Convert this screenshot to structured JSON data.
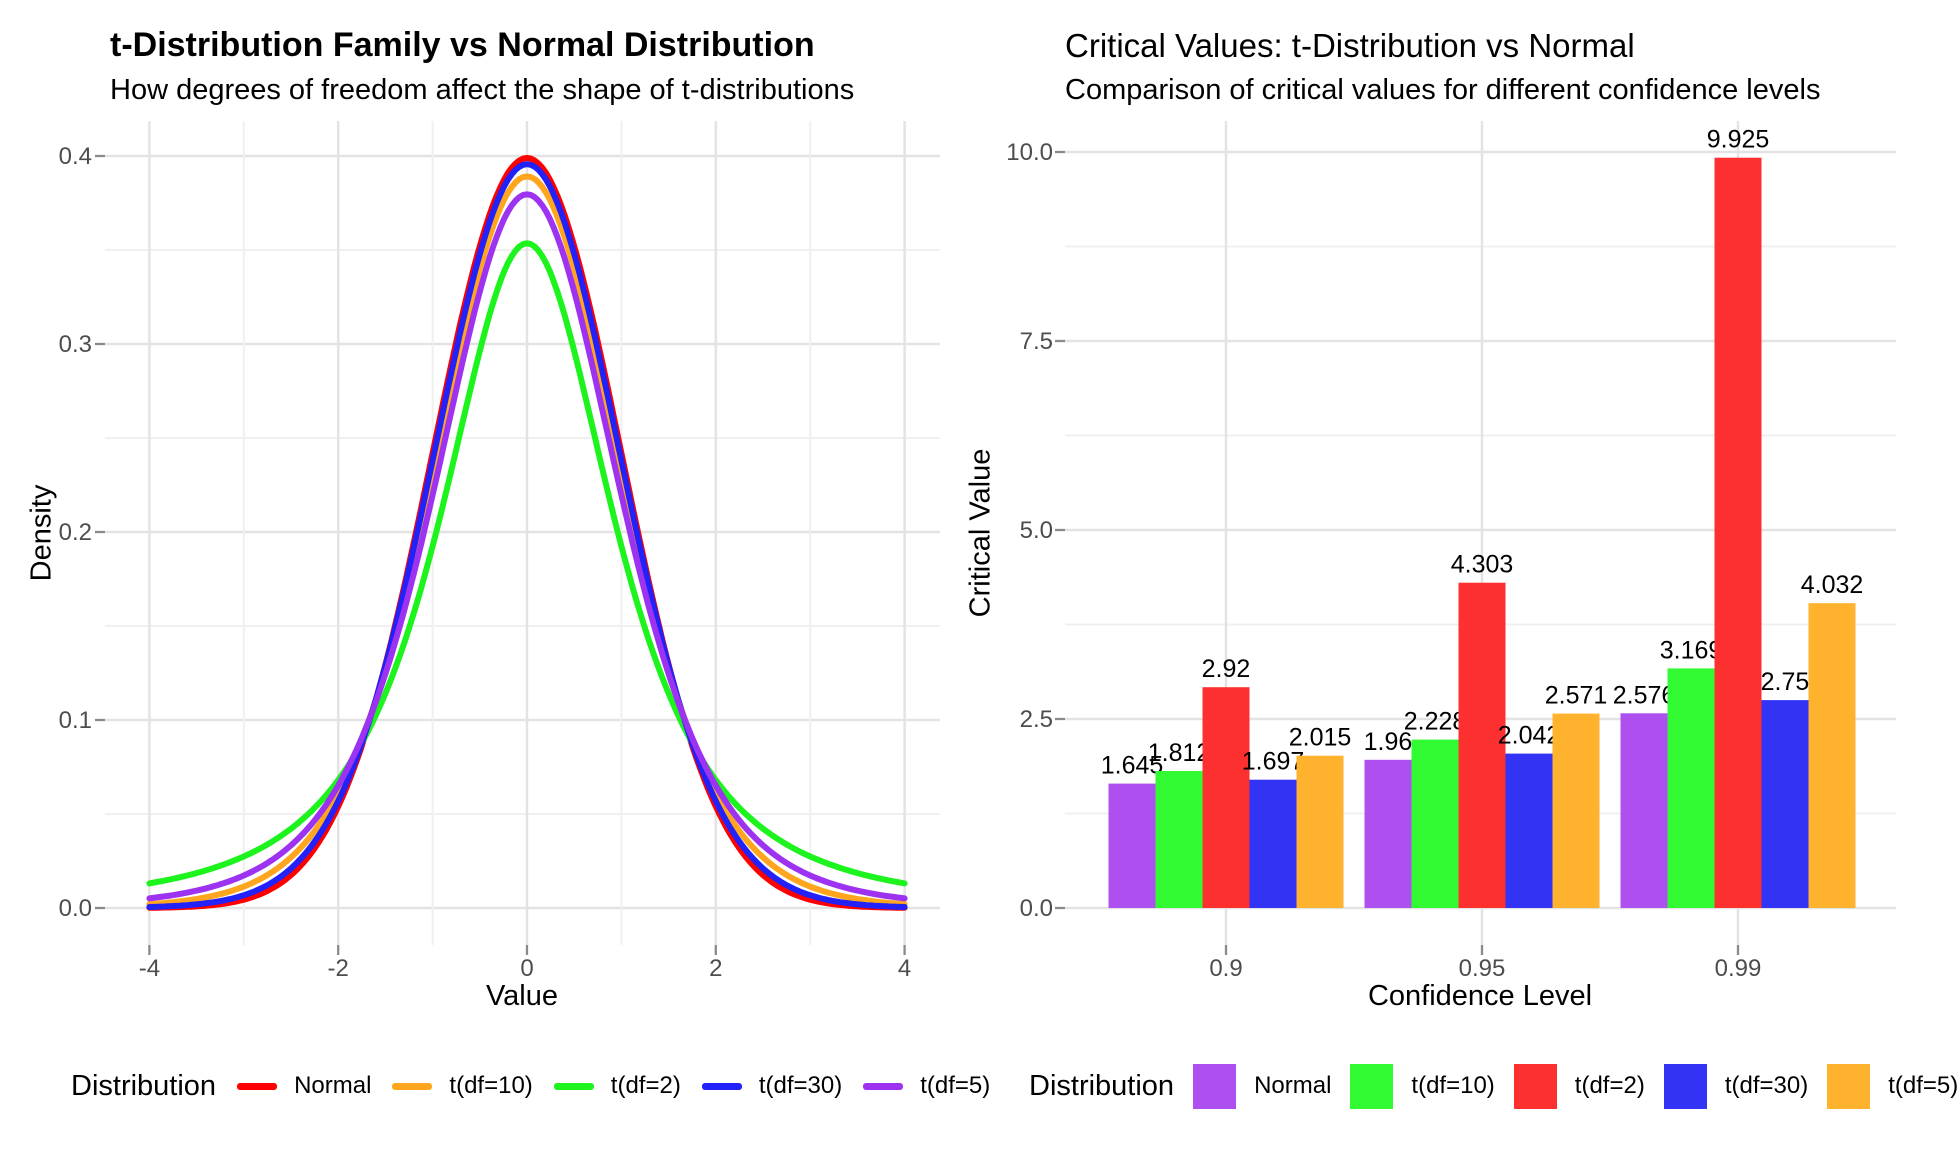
{
  "figure": {
    "background": "#FFFFFF",
    "grid_major_color": "#E3E3E3",
    "grid_minor_color": "#F0F0F0",
    "tick_mark_color": "#8A8A8A",
    "tick_label_color": "#4D4D4D",
    "text_color": "#000000"
  },
  "chart_data": [
    {
      "type": "line",
      "panel": "left",
      "title": "t-Distribution Family vs Normal Distribution",
      "subtitle": "How degrees of freedom affect the shape of t-distributions",
      "xlabel": "Value",
      "ylabel": "Density",
      "legend_title": "Distribution",
      "legend_position": "bottom",
      "grid": true,
      "xlim": [
        -4,
        4
      ],
      "ylim": [
        0,
        0.42
      ],
      "x_ticks": [
        -4,
        -2,
        0,
        2,
        4
      ],
      "x_tick_labels": [
        "-4",
        "-2",
        "0",
        "2",
        "4"
      ],
      "x_minor": [
        -3,
        -1,
        1,
        3
      ],
      "y_ticks": [
        0,
        0.1,
        0.2,
        0.3,
        0.4
      ],
      "y_tick_labels": [
        "0.0",
        "0.1",
        "0.2",
        "0.3",
        "0.4"
      ],
      "y_minor": [
        0.05,
        0.15,
        0.25,
        0.35
      ],
      "series": [
        {
          "name": "Normal",
          "color": "#FF0000",
          "dist": "normal",
          "peak_density": 0.3989
        },
        {
          "name": "t(df=10)",
          "color": "#FFA51E",
          "dist": "t",
          "df": 10,
          "peak_density": 0.3891
        },
        {
          "name": "t(df=2)",
          "color": "#1DF31D",
          "dist": "t",
          "df": 2,
          "peak_density": 0.3536
        },
        {
          "name": "t(df=30)",
          "color": "#2121F8",
          "dist": "t",
          "df": 30,
          "peak_density": 0.3956
        },
        {
          "name": "t(df=5)",
          "color": "#9D33F0",
          "dist": "t",
          "df": 5,
          "peak_density": 0.3796
        }
      ]
    },
    {
      "type": "bar",
      "panel": "right",
      "title": "Critical Values: t-Distribution vs Normal",
      "subtitle": "Comparison of critical values for different confidence levels",
      "xlabel": "Confidence Level",
      "ylabel": "Critical Value",
      "legend_title": "Distribution",
      "legend_position": "bottom",
      "grid": true,
      "categories": [
        "0.9",
        "0.95",
        "0.99"
      ],
      "y_ticks": [
        0,
        2.5,
        5,
        7.5,
        10
      ],
      "y_tick_labels": [
        "0.0",
        "2.5",
        "5.0",
        "7.5",
        "10.0"
      ],
      "y_minor": [
        1.25,
        3.75,
        6.25,
        8.75
      ],
      "ylim": [
        0,
        10.42
      ],
      "bar_value_labels_shown": true,
      "series": [
        {
          "name": "Normal",
          "color": "#AE4FF0",
          "values": [
            1.645,
            1.96,
            2.576
          ]
        },
        {
          "name": "t(df=10)",
          "color": "#33FB33",
          "values": [
            1.812,
            2.228,
            3.169
          ]
        },
        {
          "name": "t(df=2)",
          "color": "#FC302E",
          "values": [
            2.92,
            4.303,
            9.925
          ]
        },
        {
          "name": "t(df=30)",
          "color": "#3333F5",
          "values": [
            1.697,
            2.042,
            2.75
          ]
        },
        {
          "name": "t(df=5)",
          "color": "#FFB22D",
          "values": [
            2.015,
            2.571,
            4.032
          ]
        }
      ]
    }
  ]
}
